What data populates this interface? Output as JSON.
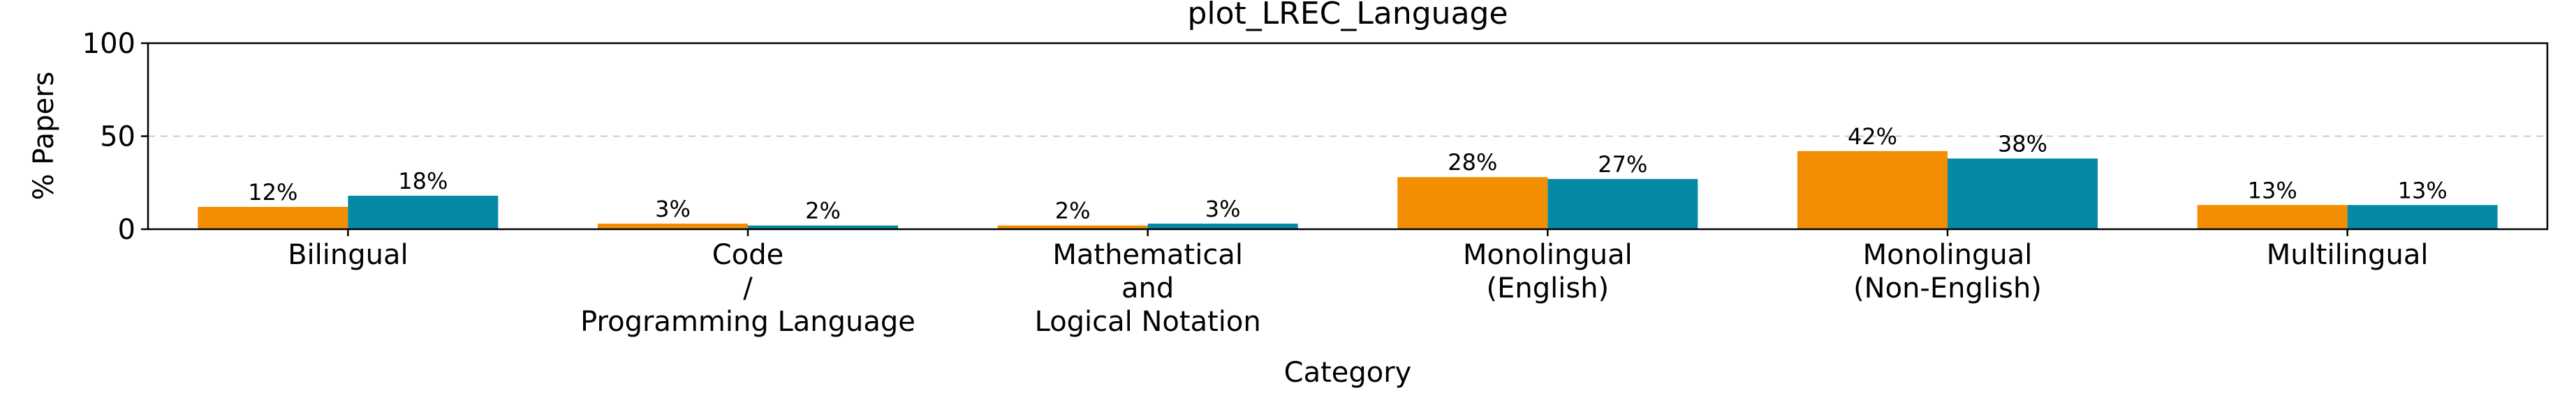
{
  "chart_data": {
    "type": "bar",
    "title": "plot_LREC_Language",
    "xlabel": "Category",
    "ylabel": "% Papers",
    "ylim": [
      0,
      100
    ],
    "yticks": [
      0,
      50,
      100
    ],
    "grid": "y-dashed-at-50",
    "categories": [
      [
        "Bilingual"
      ],
      [
        "Code",
        "/",
        "Programming Language"
      ],
      [
        "Mathematical",
        "and",
        "Logical Notation"
      ],
      [
        "Monolingual",
        "(English)"
      ],
      [
        "Monolingual",
        "(Non-English)"
      ],
      [
        "Multilingual"
      ]
    ],
    "series": [
      {
        "color": "#f28e00",
        "values": [
          12,
          3,
          2,
          28,
          42,
          13
        ],
        "labels": [
          "12%",
          "3%",
          "2%",
          "28%",
          "42%",
          "13%"
        ]
      },
      {
        "color": "#058aa6",
        "values": [
          18,
          2,
          3,
          27,
          38,
          13
        ],
        "labels": [
          "18%",
          "2%",
          "3%",
          "27%",
          "38%",
          "13%"
        ]
      }
    ]
  }
}
